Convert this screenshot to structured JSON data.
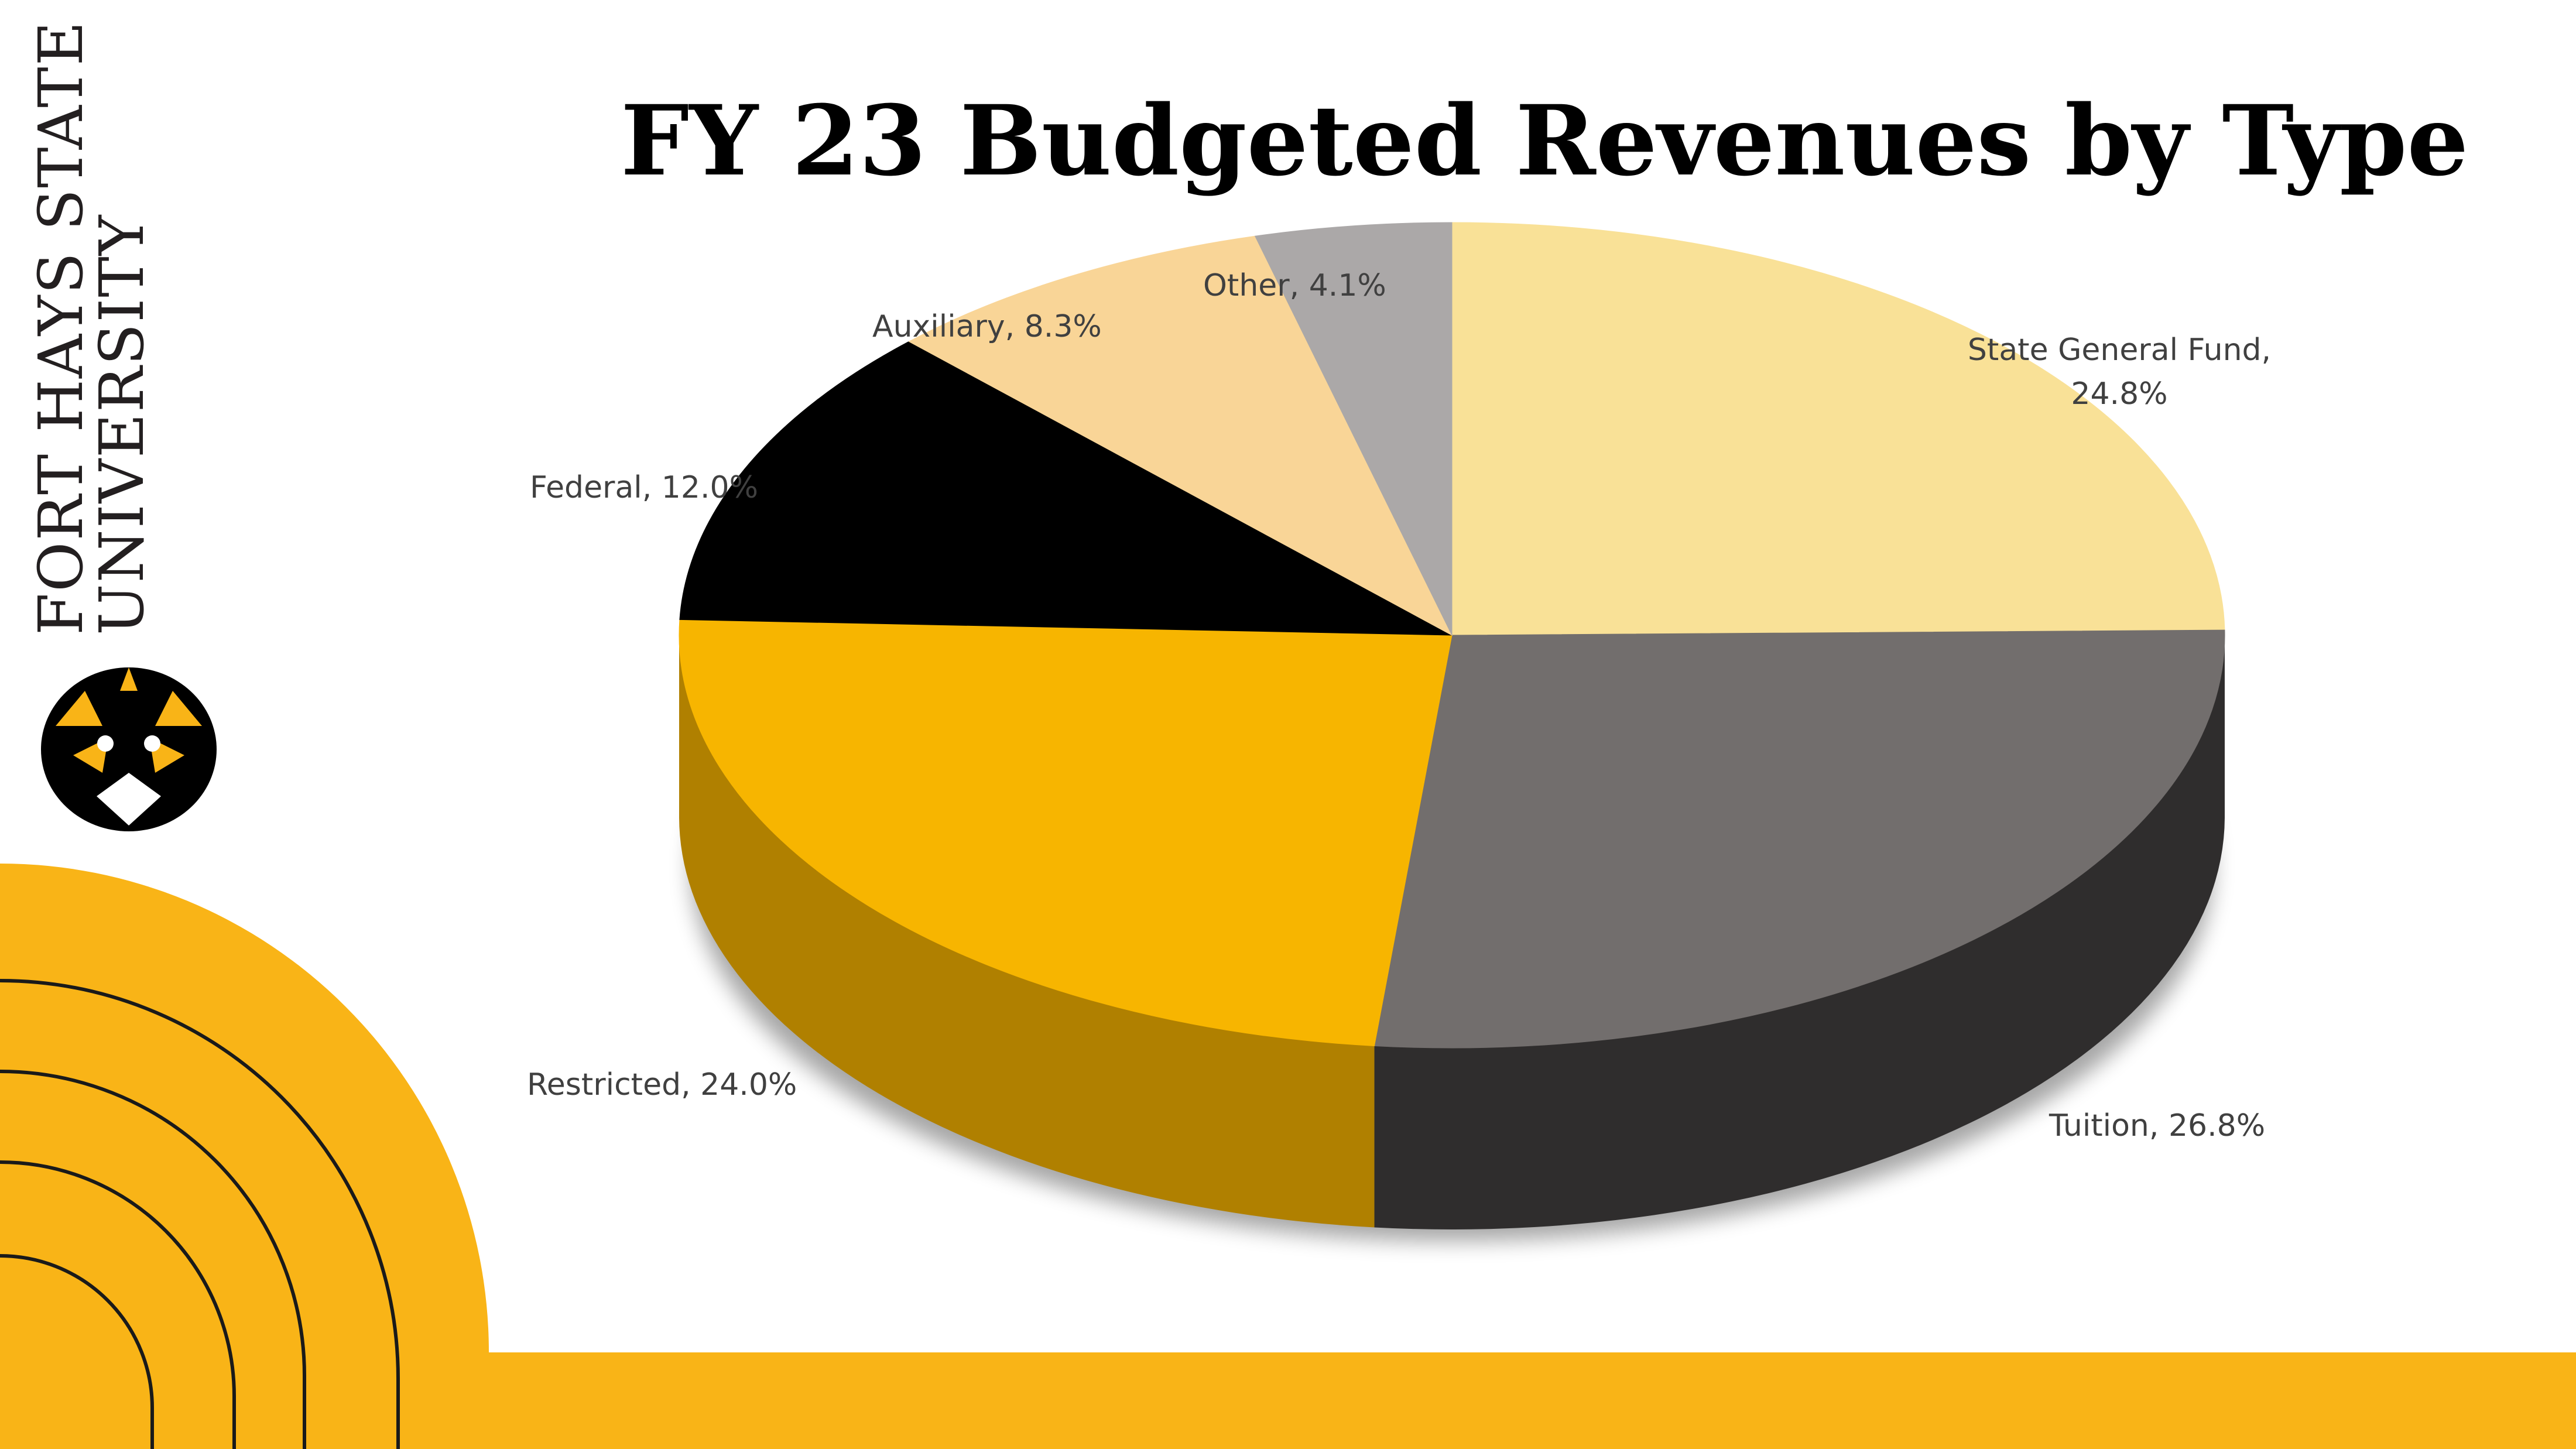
{
  "slide": {
    "title": "FY 23 Budgeted Revenues by Type",
    "logo": {
      "line1": "FORT HAYS STATE",
      "line2": "UNIVERSITY"
    },
    "colors": {
      "gold": "#f9b417",
      "black": "#000000",
      "white": "#ffffff"
    }
  },
  "chart_data": {
    "type": "pie",
    "title": "FY 23 Budgeted Revenues by Type",
    "style": "3d",
    "legend": "none",
    "slices": [
      {
        "name": "State General Fund",
        "value": 24.8,
        "label_line1": "State General Fund,",
        "label_line2": "24.8%",
        "color": "#f9e197",
        "side": "#e8c96a"
      },
      {
        "name": "Tuition",
        "value": 26.8,
        "label_line1": "Tuition, 26.8%",
        "label_line2": "",
        "color": "#726e6d",
        "side": "#2f2d2d"
      },
      {
        "name": "Restricted",
        "value": 24.0,
        "label_line1": "Restricted, 24.0%",
        "label_line2": "",
        "color": "#f7b500",
        "side": "#b08000"
      },
      {
        "name": "Federal",
        "value": 12.0,
        "label_line1": "Federal, 12.0%",
        "label_line2": "",
        "color": "#000000",
        "side": "#000000"
      },
      {
        "name": "Auxiliary",
        "value": 8.3,
        "label_line1": "Auxiliary, 8.3%",
        "label_line2": "",
        "color": "#f9d597",
        "side": "#d8b070"
      },
      {
        "name": "Other",
        "value": 4.1,
        "label_line1": "Other, 4.1%",
        "label_line2": "",
        "color": "#aba8a8",
        "side": "#8a8787"
      }
    ]
  }
}
